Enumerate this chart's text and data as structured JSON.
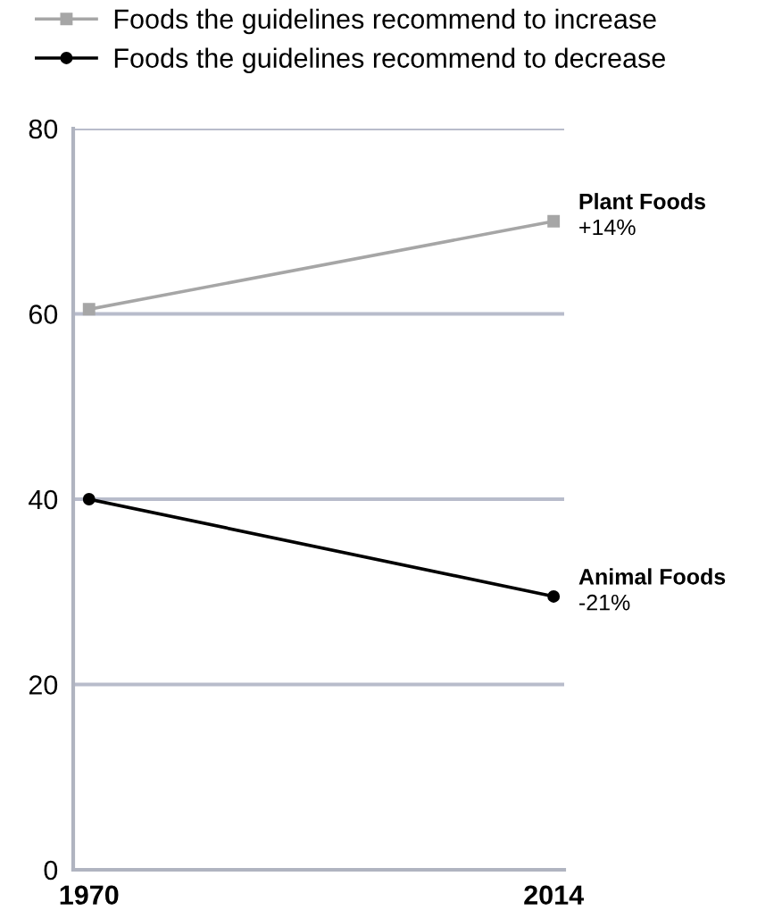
{
  "chart_data": {
    "type": "line",
    "x": [
      1970,
      2014
    ],
    "series": [
      {
        "name": "Foods the guidelines recommend to increase",
        "color": "#a6a6a6",
        "values": [
          60.5,
          70
        ],
        "marker": "square"
      },
      {
        "name": "Foods the guidelines recommend to decrease",
        "color": "#000000",
        "values": [
          40,
          29.5
        ],
        "marker": "circle"
      }
    ],
    "xlim": [
      1968.5,
      2015
    ],
    "xticks": [
      1970,
      2014
    ],
    "ylim": [
      0,
      80
    ],
    "yticks": [
      0,
      20,
      40,
      60,
      80
    ],
    "grid": "y",
    "legend": "top right",
    "line_style": "solid",
    "annotations": [
      {
        "text": "Plant Foods\n+14%",
        "x": 2014,
        "y": 70
      },
      {
        "text": "Animal Foods\n-21%",
        "x": 2014,
        "y": 29.5
      }
    ]
  }
}
